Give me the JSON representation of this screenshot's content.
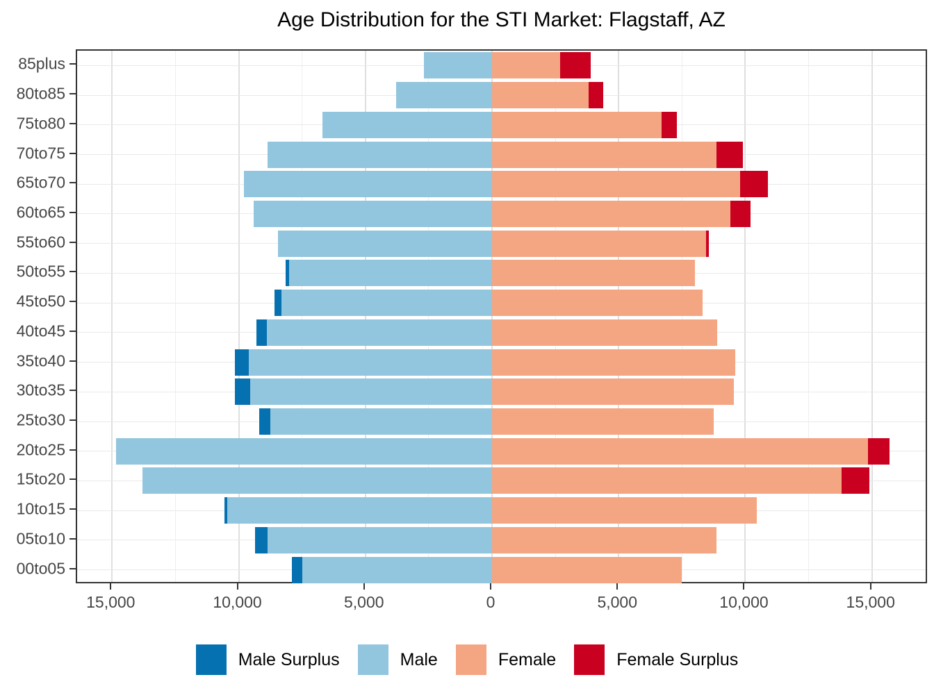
{
  "title": "Age Distribution for the STI Market: Flagstaff, AZ",
  "colors": {
    "male_surplus": "#0571B0",
    "male": "#92C5DE",
    "female": "#F4A582",
    "female_surplus": "#CA0020",
    "panel_border": "#333333",
    "grid_major": "#DFDFDF",
    "grid_minor": "#EFEFEF",
    "axis_text": "#454545"
  },
  "legend": {
    "position": "bottom",
    "items": [
      {
        "label": "Male Surplus",
        "color_key": "male_surplus"
      },
      {
        "label": "Male",
        "color_key": "male"
      },
      {
        "label": "Female",
        "color_key": "female"
      },
      {
        "label": "Female Surplus",
        "color_key": "female_surplus"
      }
    ]
  },
  "chart_data": {
    "type": "bar",
    "variant": "population-pyramid",
    "title": "Age Distribution for the STI Market: Flagstaff, AZ",
    "xlabel": "",
    "ylabel": "",
    "categories": [
      "85plus",
      "80to85",
      "75to80",
      "70to75",
      "65to70",
      "60to65",
      "55to60",
      "50to55",
      "45to50",
      "40to45",
      "35to40",
      "30to35",
      "25to30",
      "20to25",
      "15to20",
      "10to15",
      "05to10",
      "00to05"
    ],
    "series": [
      {
        "name": "Male",
        "side": "left",
        "values": [
          2700,
          3800,
          6700,
          8850,
          9800,
          9400,
          8450,
          8150,
          8600,
          9300,
          10150,
          10150,
          9200,
          14850,
          13800,
          10550,
          9350,
          7900
        ]
      },
      {
        "name": "Female",
        "side": "right",
        "values": [
          3900,
          4400,
          7300,
          9900,
          10900,
          10200,
          8550,
          8000,
          8300,
          8900,
          9600,
          9550,
          8750,
          15700,
          14900,
          10450,
          8850,
          7500
        ]
      }
    ],
    "surplus_rule": "Segment beyond min(male,female) is colored as Male Surplus (dark blue, left end) or Female Surplus (dark red, right end)",
    "x_axis": {
      "range": [
        -16380,
        17230
      ],
      "major_ticks": [
        -15000,
        -10000,
        -5000,
        0,
        5000,
        10000,
        15000
      ],
      "tick_labels": [
        "15,000",
        "10,000",
        "5,000",
        "0",
        "5,000",
        "10,000",
        "15,000"
      ],
      "minor_ticks": [
        -12500,
        -7500,
        -2500,
        2500,
        7500,
        12500
      ]
    },
    "grid": true,
    "legend_position": "bottom"
  }
}
